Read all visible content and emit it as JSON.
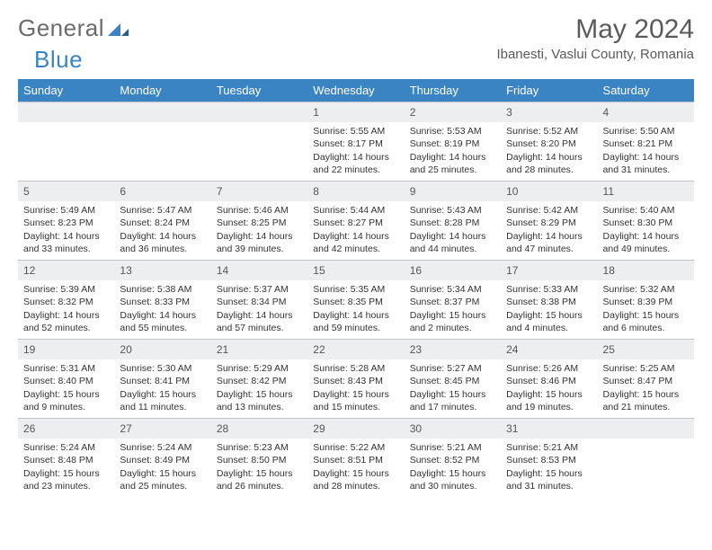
{
  "logo": {
    "general": "General",
    "blue": "Blue"
  },
  "title": "May 2024",
  "location": "Ibanesti, Vaslui County, Romania",
  "colors": {
    "header_bg": "#3b84c4",
    "header_text": "#ffffff",
    "daynum_bg": "#eceef0",
    "border": "#c0c4c9",
    "text": "#333333"
  },
  "weekdays": [
    "Sunday",
    "Monday",
    "Tuesday",
    "Wednesday",
    "Thursday",
    "Friday",
    "Saturday"
  ],
  "weeks": [
    [
      null,
      null,
      null,
      {
        "n": "1",
        "sr": "5:55 AM",
        "ss": "8:17 PM",
        "dl": "14 hours and 22 minutes."
      },
      {
        "n": "2",
        "sr": "5:53 AM",
        "ss": "8:19 PM",
        "dl": "14 hours and 25 minutes."
      },
      {
        "n": "3",
        "sr": "5:52 AM",
        "ss": "8:20 PM",
        "dl": "14 hours and 28 minutes."
      },
      {
        "n": "4",
        "sr": "5:50 AM",
        "ss": "8:21 PM",
        "dl": "14 hours and 31 minutes."
      }
    ],
    [
      {
        "n": "5",
        "sr": "5:49 AM",
        "ss": "8:23 PM",
        "dl": "14 hours and 33 minutes."
      },
      {
        "n": "6",
        "sr": "5:47 AM",
        "ss": "8:24 PM",
        "dl": "14 hours and 36 minutes."
      },
      {
        "n": "7",
        "sr": "5:46 AM",
        "ss": "8:25 PM",
        "dl": "14 hours and 39 minutes."
      },
      {
        "n": "8",
        "sr": "5:44 AM",
        "ss": "8:27 PM",
        "dl": "14 hours and 42 minutes."
      },
      {
        "n": "9",
        "sr": "5:43 AM",
        "ss": "8:28 PM",
        "dl": "14 hours and 44 minutes."
      },
      {
        "n": "10",
        "sr": "5:42 AM",
        "ss": "8:29 PM",
        "dl": "14 hours and 47 minutes."
      },
      {
        "n": "11",
        "sr": "5:40 AM",
        "ss": "8:30 PM",
        "dl": "14 hours and 49 minutes."
      }
    ],
    [
      {
        "n": "12",
        "sr": "5:39 AM",
        "ss": "8:32 PM",
        "dl": "14 hours and 52 minutes."
      },
      {
        "n": "13",
        "sr": "5:38 AM",
        "ss": "8:33 PM",
        "dl": "14 hours and 55 minutes."
      },
      {
        "n": "14",
        "sr": "5:37 AM",
        "ss": "8:34 PM",
        "dl": "14 hours and 57 minutes."
      },
      {
        "n": "15",
        "sr": "5:35 AM",
        "ss": "8:35 PM",
        "dl": "14 hours and 59 minutes."
      },
      {
        "n": "16",
        "sr": "5:34 AM",
        "ss": "8:37 PM",
        "dl": "15 hours and 2 minutes."
      },
      {
        "n": "17",
        "sr": "5:33 AM",
        "ss": "8:38 PM",
        "dl": "15 hours and 4 minutes."
      },
      {
        "n": "18",
        "sr": "5:32 AM",
        "ss": "8:39 PM",
        "dl": "15 hours and 6 minutes."
      }
    ],
    [
      {
        "n": "19",
        "sr": "5:31 AM",
        "ss": "8:40 PM",
        "dl": "15 hours and 9 minutes."
      },
      {
        "n": "20",
        "sr": "5:30 AM",
        "ss": "8:41 PM",
        "dl": "15 hours and 11 minutes."
      },
      {
        "n": "21",
        "sr": "5:29 AM",
        "ss": "8:42 PM",
        "dl": "15 hours and 13 minutes."
      },
      {
        "n": "22",
        "sr": "5:28 AM",
        "ss": "8:43 PM",
        "dl": "15 hours and 15 minutes."
      },
      {
        "n": "23",
        "sr": "5:27 AM",
        "ss": "8:45 PM",
        "dl": "15 hours and 17 minutes."
      },
      {
        "n": "24",
        "sr": "5:26 AM",
        "ss": "8:46 PM",
        "dl": "15 hours and 19 minutes."
      },
      {
        "n": "25",
        "sr": "5:25 AM",
        "ss": "8:47 PM",
        "dl": "15 hours and 21 minutes."
      }
    ],
    [
      {
        "n": "26",
        "sr": "5:24 AM",
        "ss": "8:48 PM",
        "dl": "15 hours and 23 minutes."
      },
      {
        "n": "27",
        "sr": "5:24 AM",
        "ss": "8:49 PM",
        "dl": "15 hours and 25 minutes."
      },
      {
        "n": "28",
        "sr": "5:23 AM",
        "ss": "8:50 PM",
        "dl": "15 hours and 26 minutes."
      },
      {
        "n": "29",
        "sr": "5:22 AM",
        "ss": "8:51 PM",
        "dl": "15 hours and 28 minutes."
      },
      {
        "n": "30",
        "sr": "5:21 AM",
        "ss": "8:52 PM",
        "dl": "15 hours and 30 minutes."
      },
      {
        "n": "31",
        "sr": "5:21 AM",
        "ss": "8:53 PM",
        "dl": "15 hours and 31 minutes."
      },
      null
    ]
  ],
  "labels": {
    "sunrise": "Sunrise:",
    "sunset": "Sunset:",
    "daylight": "Daylight:"
  }
}
